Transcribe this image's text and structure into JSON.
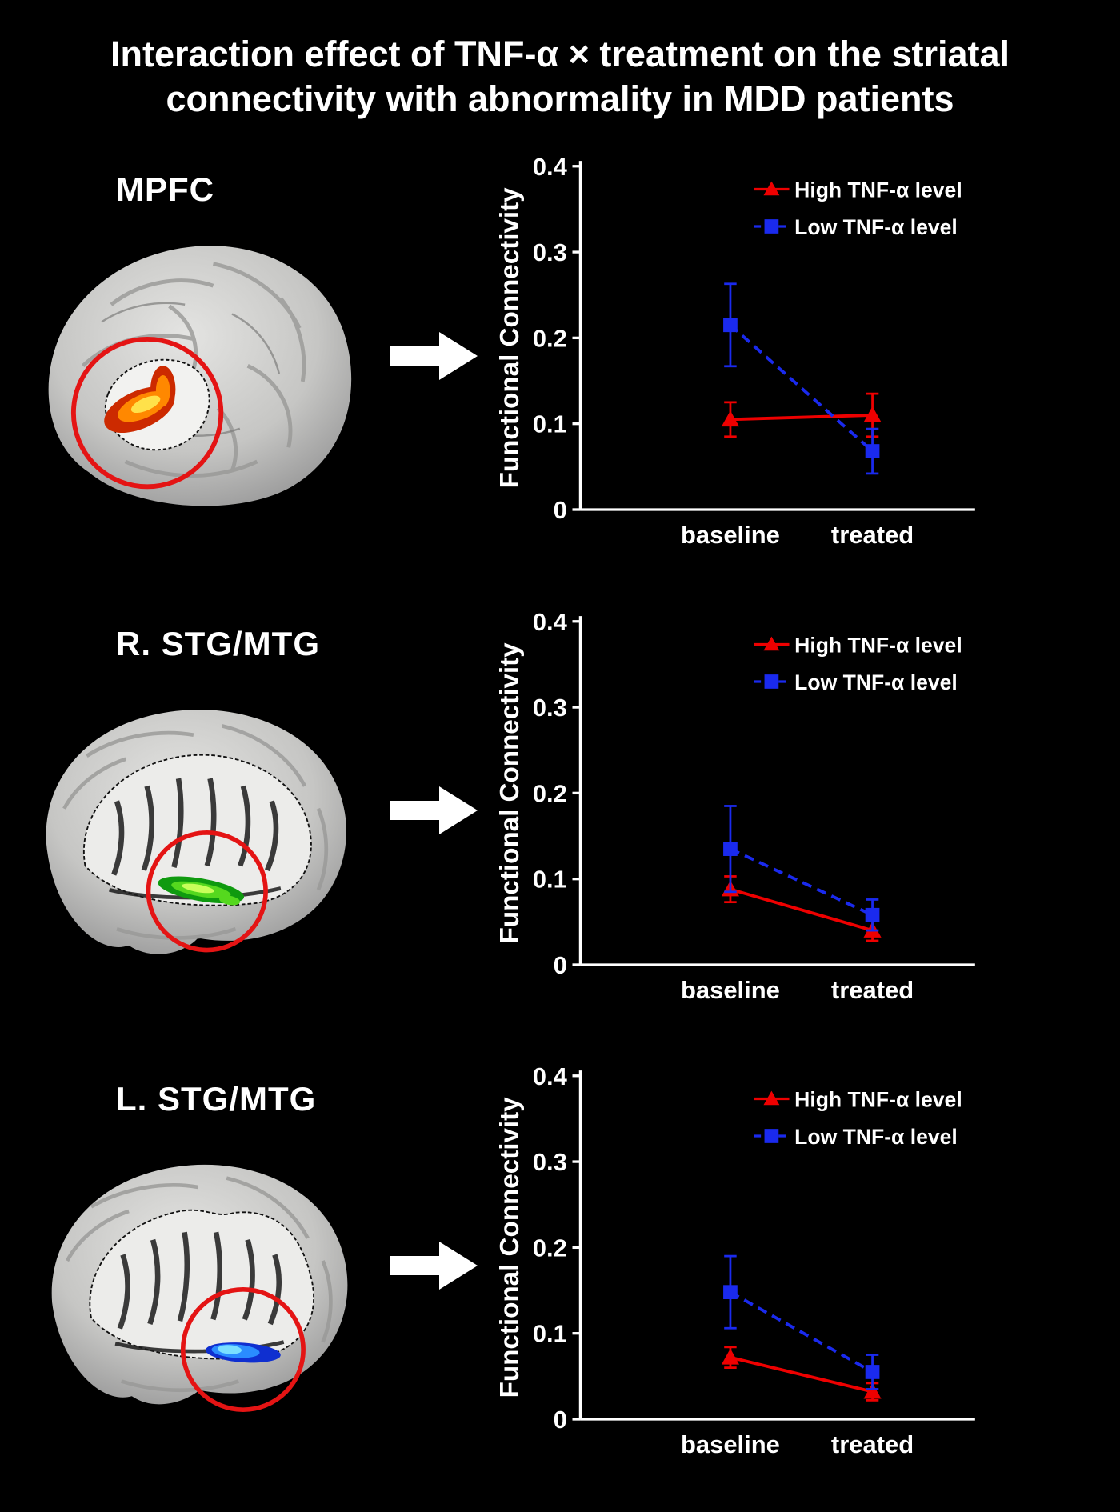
{
  "title": {
    "line1": "Interaction effect of TNF-α × treatment on the striatal",
    "line2": "connectivity with abnormality in MDD patients"
  },
  "colors": {
    "background": "#000000",
    "text": "#ffffff",
    "high_series": "#ee0000",
    "low_series": "#1a2aee",
    "circle_annotation": "#e41414",
    "brain_gray": "#c6c6c4",
    "arrow": "#ffffff"
  },
  "rows": [
    {
      "label": "MPFC",
      "activation": {
        "outer": "#cc2a00",
        "mid": "#ff8800",
        "core": "#ffe14a"
      }
    },
    {
      "label": "R. STG/MTG",
      "activation": {
        "outer": "#0f9a0f",
        "mid": "#55d81e",
        "core": "#c8ff5a"
      }
    },
    {
      "label": "L. STG/MTG",
      "activation": {
        "outer": "#0f2fd0",
        "mid": "#2a8cff",
        "core": "#7ae0ff"
      }
    }
  ],
  "chart_data": [
    {
      "type": "line",
      "region": "MPFC",
      "categories": [
        "baseline",
        "treated"
      ],
      "series": [
        {
          "name": "High TNF-α level",
          "color": "#ee0000",
          "marker": "triangle",
          "line": "solid",
          "values": [
            0.105,
            0.11
          ],
          "errors": [
            0.02,
            0.025
          ]
        },
        {
          "name": "Low TNF-α level",
          "color": "#1a2aee",
          "marker": "square",
          "line": "dashed",
          "values": [
            0.215,
            0.068
          ],
          "errors": [
            0.048,
            0.026
          ]
        }
      ],
      "ylabel": "Functional Connectivity",
      "xlabel": "",
      "ylim": [
        0,
        0.4
      ],
      "yticks": [
        0,
        0.1,
        0.2,
        0.3,
        0.4
      ],
      "grid": false,
      "legend_position": "top-right"
    },
    {
      "type": "line",
      "region": "R. STG/MTG",
      "categories": [
        "baseline",
        "treated"
      ],
      "series": [
        {
          "name": "High TNF-α level",
          "color": "#ee0000",
          "marker": "triangle",
          "line": "solid",
          "values": [
            0.088,
            0.04
          ],
          "errors": [
            0.015,
            0.012
          ]
        },
        {
          "name": "Low TNF-α level",
          "color": "#1a2aee",
          "marker": "square",
          "line": "dashed",
          "values": [
            0.135,
            0.058
          ],
          "errors": [
            0.05,
            0.018
          ]
        }
      ],
      "ylabel": "Functional Connectivity",
      "xlabel": "",
      "ylim": [
        0,
        0.4
      ],
      "yticks": [
        0,
        0.1,
        0.2,
        0.3,
        0.4
      ],
      "grid": false,
      "legend_position": "top-right"
    },
    {
      "type": "line",
      "region": "L. STG/MTG",
      "categories": [
        "baseline",
        "treated"
      ],
      "series": [
        {
          "name": "High TNF-α level",
          "color": "#ee0000",
          "marker": "triangle",
          "line": "solid",
          "values": [
            0.072,
            0.032
          ],
          "errors": [
            0.012,
            0.01
          ]
        },
        {
          "name": "Low TNF-α level",
          "color": "#1a2aee",
          "marker": "square",
          "line": "dashed",
          "values": [
            0.148,
            0.055
          ],
          "errors": [
            0.042,
            0.02
          ]
        }
      ],
      "ylabel": "Functional Connectivity",
      "xlabel": "",
      "ylim": [
        0,
        0.4
      ],
      "yticks": [
        0,
        0.1,
        0.2,
        0.3,
        0.4
      ],
      "grid": false,
      "legend_position": "top-right"
    }
  ]
}
